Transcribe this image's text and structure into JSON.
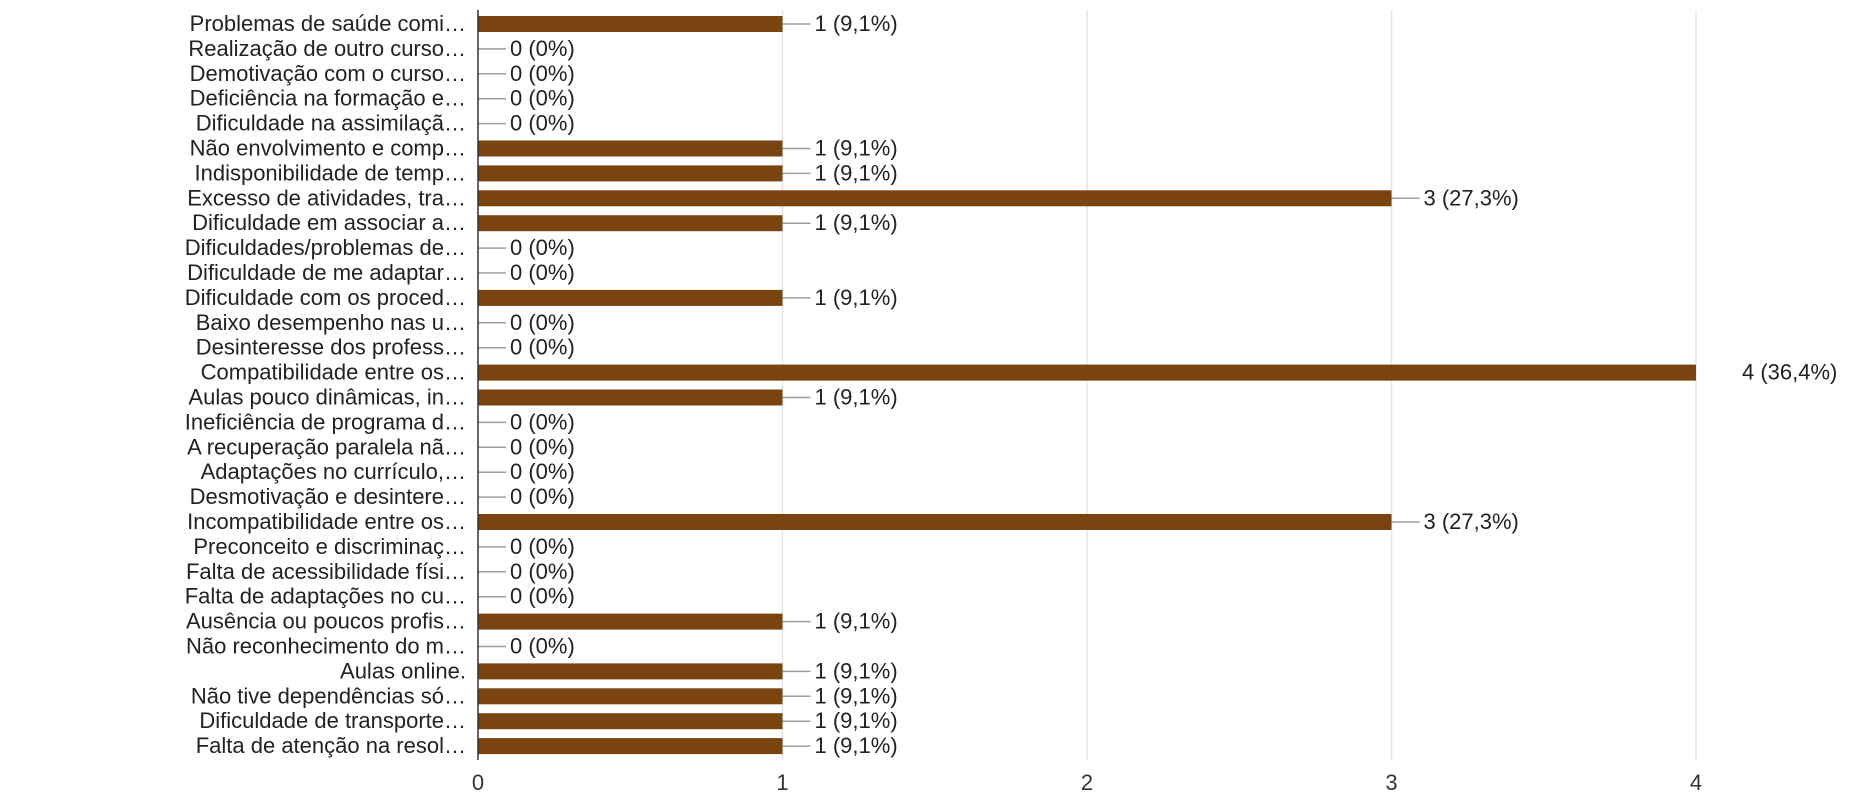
{
  "chart_data": {
    "type": "bar",
    "orientation": "horizontal",
    "categories": [
      "Problemas de saúde comi…",
      "Realização de outro curso…",
      "Demotivação com o curso…",
      "Deficiência na formação e…",
      "Dificuldade na assimilaçã…",
      "Não envolvimento e comp…",
      "Indisponibilidade de temp…",
      "Excesso de atividades, tra…",
      "Dificuldade em associar a…",
      "Dificuldades/problemas de…",
      "Dificuldade de me adaptar…",
      "Dificuldade com os proced…",
      "Baixo desempenho nas u…",
      "Desinteresse dos profess…",
      "Compatibilidade entre os…",
      "Aulas pouco dinâmicas, in…",
      "Ineficiência de programa d…",
      "A recuperação paralela nã…",
      "Adaptações no currículo,…",
      "Desmotivação e desintere…",
      "Incompatibilidade entre os…",
      "Preconceito e discriminaç…",
      "Falta de acessibilidade físi…",
      "Falta de adaptações no cu…",
      "Ausência ou poucos profis…",
      "Não reconhecimento do m…",
      "Aulas online.",
      "Não tive dependências só…",
      "Dificuldade de transporte…",
      "Falta de atenção na resol…"
    ],
    "values": [
      1,
      0,
      0,
      0,
      0,
      1,
      1,
      3,
      1,
      0,
      0,
      1,
      0,
      0,
      4,
      1,
      0,
      0,
      0,
      0,
      3,
      0,
      0,
      0,
      1,
      0,
      1,
      1,
      1,
      1
    ],
    "value_labels": [
      "1 (9,1%)",
      "0 (0%)",
      "0 (0%)",
      "0 (0%)",
      "0 (0%)",
      "1 (9,1%)",
      "1 (9,1%)",
      "3 (27,3%)",
      "1 (9,1%)",
      "0 (0%)",
      "0 (0%)",
      "1 (9,1%)",
      "0 (0%)",
      "0 (0%)",
      "4 (36,4%)",
      "1 (9,1%)",
      "0 (0%)",
      "0 (0%)",
      "0 (0%)",
      "0 (0%)",
      "3 (27,3%)",
      "0 (0%)",
      "0 (0%)",
      "0 (0%)",
      "1 (9,1%)",
      "0 (0%)",
      "1 (9,1%)",
      "1 (9,1%)",
      "1 (9,1%)",
      "1 (9,1%)"
    ],
    "xlim": [
      0,
      4
    ],
    "xticks": [
      "0",
      "1",
      "2",
      "3",
      "4"
    ],
    "grid": true,
    "bar_color": "#7a4410"
  }
}
